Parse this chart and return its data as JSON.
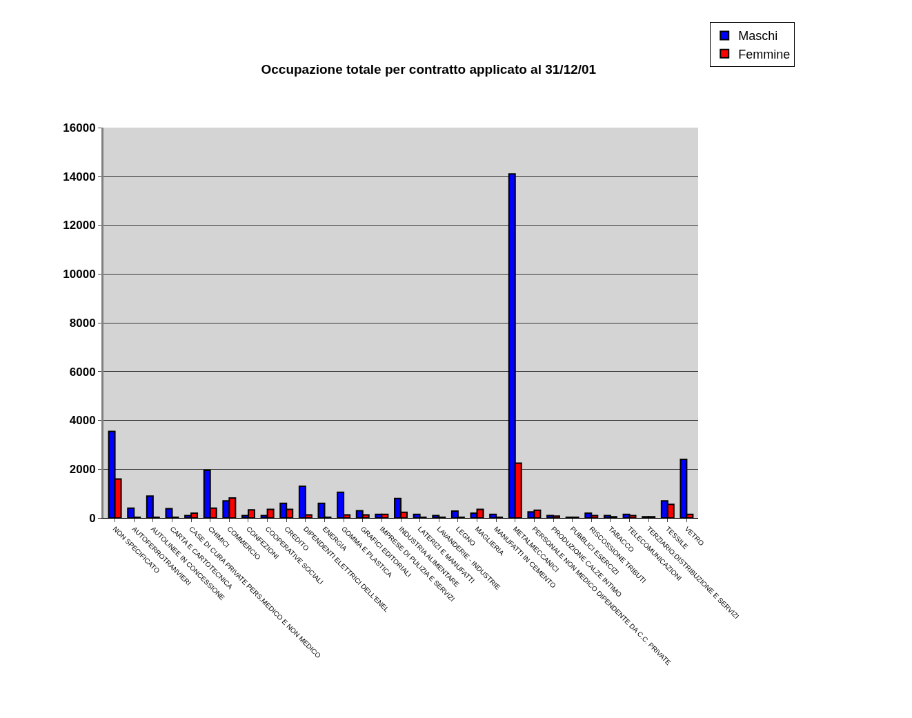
{
  "chart_data": {
    "type": "bar",
    "title": "Occupazione totale per contratto applicato al 31/12/01",
    "categories": [
      "NON SPECIFICATO",
      "AUTOFERROTRANVIERI",
      "AUTOLINEE IN CONCESSIONE",
      "CARTA E CARTOTECNICA",
      "CASE DI CURA PRIVATE PERS.MEDICO E NON MEDICO",
      "CHIMICI",
      "COMMERCIO",
      "CONFEZIONI",
      "COOPERATIVE SOCIALI",
      "CREDITO",
      "DIPENDENTI ELETTRICI DELL'ENEL",
      "ENERGIA",
      "GOMMA E PLASTICA",
      "GRAFICI EDITORIALI",
      "IMPRESE DI PULIZIA E SERVIZI",
      "INDUSTRIA ALIMENTARE",
      "LATERIZI E MANUFATTI",
      "LAVANDERIE - INDUSTRIE",
      "LEGNO",
      "MAGLIERIA",
      "MANUFATTI IN CEMENTO",
      "METALMECCANICI",
      "PERSONALE NON MEDICO DIPENDENTE DA C.C. PRIVATE",
      "PRODUZIONE CALZE INTIMO",
      "PUBBLICI ESERCIZI",
      "RISCOSSIONE TRIBUTI",
      "TABACCO",
      "TELECOMUNICAZIONI",
      "TERZIARIO:DISTRIBUZIONE E SERVIZI",
      "TESSILE",
      "VETRO"
    ],
    "series": [
      {
        "name": "Maschi",
        "color": "#0000ff",
        "values": [
          3550,
          400,
          900,
          380,
          100,
          1950,
          700,
          100,
          100,
          600,
          1300,
          600,
          1050,
          300,
          150,
          800,
          150,
          100,
          280,
          200,
          150,
          14100,
          250,
          100,
          30,
          200,
          100,
          150,
          50,
          700,
          2400
        ]
      },
      {
        "name": "Femmine",
        "color": "#ff0000",
        "values": [
          1600,
          30,
          30,
          30,
          200,
          400,
          820,
          330,
          350,
          350,
          130,
          30,
          130,
          130,
          150,
          230,
          30,
          30,
          30,
          350,
          30,
          2250,
          320,
          80,
          30,
          100,
          50,
          100,
          50,
          560,
          150
        ]
      }
    ],
    "ylim": [
      0,
      16000
    ],
    "yticks": [
      0,
      2000,
      4000,
      6000,
      8000,
      10000,
      12000,
      14000,
      16000
    ],
    "grid": "y",
    "legend": "top right"
  }
}
